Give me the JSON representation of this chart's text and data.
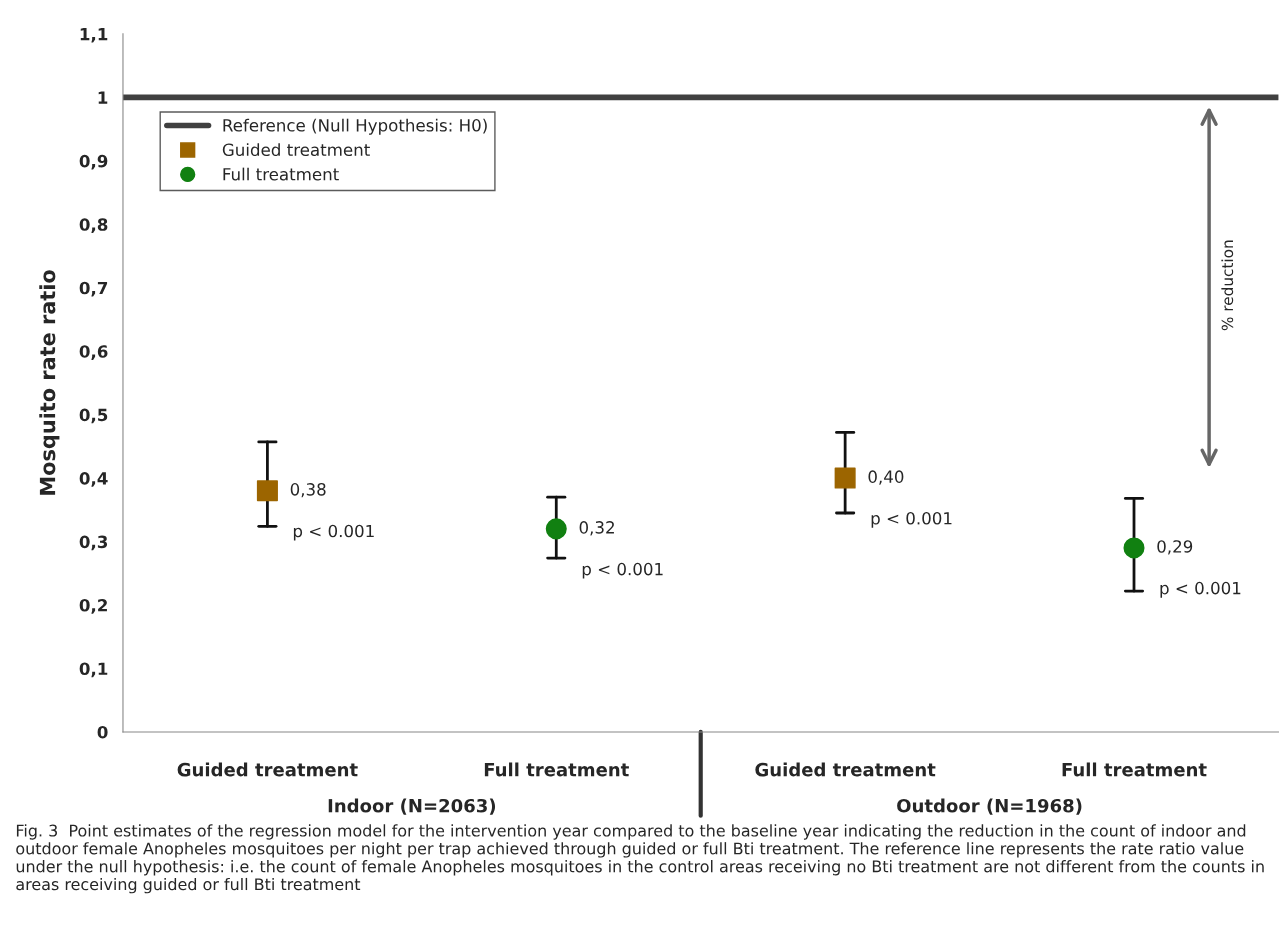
{
  "chart_data": {
    "type": "scatter",
    "ylabel": "Mosquito rate ratio",
    "categories": [
      "Guided treatment",
      "Full treatment",
      "Guided treatment",
      "Full treatment"
    ],
    "series": [
      {
        "name": "Guided treatment",
        "marker": "square",
        "color": "#9c6500",
        "values": [
          0.38,
          null,
          0.4,
          null
        ],
        "errors": [
          [
            0.324,
            0.457
          ],
          null,
          [
            0.345,
            0.472
          ],
          null
        ],
        "value_labels": [
          "0,38",
          null,
          "0,40",
          null
        ]
      },
      {
        "name": "Full treatment",
        "marker": "circle",
        "color": "#118011",
        "values": [
          null,
          0.32,
          null,
          0.29
        ],
        "errors": [
          null,
          [
            0.274,
            0.37
          ],
          null,
          [
            0.222,
            0.368
          ]
        ],
        "value_labels": [
          null,
          "0,32",
          null,
          "0,29"
        ]
      }
    ],
    "ylim": [
      0,
      1.1
    ],
    "yticks": [
      {
        "value": 0,
        "label": "0"
      },
      {
        "value": 0.1,
        "label": "0,1"
      },
      {
        "value": 0.2,
        "label": "0,2"
      },
      {
        "value": 0.3,
        "label": "0,3"
      },
      {
        "value": 0.4,
        "label": "0,4"
      },
      {
        "value": 0.5,
        "label": "0,5"
      },
      {
        "value": 0.6,
        "label": "0,6"
      },
      {
        "value": 0.7,
        "label": "0,7"
      },
      {
        "value": 0.8,
        "label": "0,8"
      },
      {
        "value": 0.9,
        "label": "0,9"
      },
      {
        "value": 1,
        "label": "1"
      },
      {
        "value": 1.1,
        "label": "1,1"
      }
    ],
    "ref_lines": [
      {
        "axis": "y",
        "value": 1,
        "label": "Reference (Null Hypothesis: H0)",
        "color": "#404040",
        "line_style": "solid"
      }
    ],
    "grid": false,
    "legend": "top left",
    "annotations": [
      "p < 0.001",
      "p < 0.001",
      "p < 0.001",
      "p < 0.001",
      "% reduction",
      "Indoor (N=2063)",
      "Outdoor (N=1968)",
      "Fig. 3  Point estimates of the regression model for the intervention year compared to the baseline year indicating the reduction in the count of indoor and outdoor female Anopheles mosquitoes per night per trap achieved through guided or full Bti treatment. The reference line represents the rate ratio value under the null hypothesis: i.e. the count of female Anopheles mosquitoes in the control areas receiving no Bti treatment are not different from the counts in areas receiving guided or full Bti treatment"
    ]
  }
}
